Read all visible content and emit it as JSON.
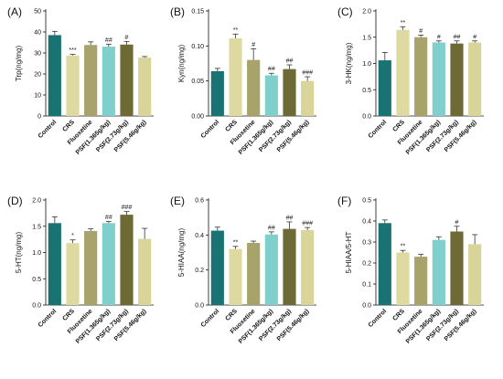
{
  "colors": [
    "#1a7373",
    "#ded9a0",
    "#a7a36a",
    "#7fcfcc",
    "#6e6a35",
    "#d9d59a"
  ],
  "chart_data": [
    {
      "type": "bar",
      "panel": "(A)",
      "ylabel": "Trp(ng/mg)",
      "categories": [
        "Control",
        "CRS",
        "Fluoxetine",
        "PSF(1.365g/kg)",
        "PSF(2.73g/kg)",
        "PSF(5.46g/kg)"
      ],
      "values": [
        38.5,
        28.8,
        33.8,
        33.0,
        34.0,
        27.8
      ],
      "errors": [
        1.8,
        0.5,
        1.5,
        1.2,
        1.5,
        0.5
      ],
      "significance": [
        "",
        "***",
        "",
        "##",
        "#",
        ""
      ],
      "ylim": [
        0,
        50
      ],
      "yticks": [
        "0",
        "10",
        "20",
        "30",
        "40",
        "50"
      ]
    },
    {
      "type": "bar",
      "panel": "(B)",
      "ylabel": "Kyn(ng/mg)",
      "categories": [
        "Control",
        "CRS",
        "Fluoxetine",
        "PSF(1.365g/kg)",
        "PSF(2.73g/kg)",
        "PSF(5.46g/kg)"
      ],
      "values": [
        0.064,
        0.111,
        0.08,
        0.058,
        0.067,
        0.05
      ],
      "errors": [
        0.004,
        0.006,
        0.016,
        0.003,
        0.006,
        0.006
      ],
      "significance": [
        "",
        "**",
        "#",
        "##",
        "##",
        "###"
      ],
      "ylim": [
        0,
        0.15
      ],
      "yticks": [
        "0.00",
        "0.05",
        "0.10",
        "0.15"
      ]
    },
    {
      "type": "bar",
      "panel": "(C)",
      "ylabel": "3-HK(ng/mg)",
      "categories": [
        "Control",
        "CRS",
        "Fluoxetine",
        "PSF(1.365g/kg)",
        "PSF(2.73g/kg)",
        "PSF(5.46g/kg)"
      ],
      "values": [
        1.06,
        1.64,
        1.5,
        1.4,
        1.38,
        1.4
      ],
      "errors": [
        0.15,
        0.06,
        0.04,
        0.03,
        0.05,
        0.03
      ],
      "significance": [
        "",
        "**",
        "#",
        "#",
        "##",
        "#"
      ],
      "ylim": [
        0,
        2.0
      ],
      "yticks": [
        "0.0",
        "0.5",
        "1.0",
        "1.5",
        "2.0"
      ]
    },
    {
      "type": "bar",
      "panel": "(D)",
      "ylabel": "5-HT(ng/mg)",
      "categories": [
        "Control",
        "CRS",
        "Fluoxetine",
        "PSF(1.365g/kg)",
        "PSF(2.73g/kg)",
        "PSF(5.46g/kg)"
      ],
      "values": [
        1.56,
        1.18,
        1.41,
        1.56,
        1.72,
        1.26
      ],
      "errors": [
        0.12,
        0.06,
        0.04,
        0.03,
        0.06,
        0.2
      ],
      "significance": [
        "",
        "*",
        "",
        "##",
        "###",
        ""
      ],
      "ylim": [
        0,
        2.0
      ],
      "yticks": [
        "0.0",
        "0.5",
        "1.0",
        "1.5",
        "2.0"
      ]
    },
    {
      "type": "bar",
      "panel": "(E)",
      "ylabel": "5-HIAA(ng/mg)",
      "categories": [
        "Control",
        "CRS",
        "Fluoxetine",
        "PSF(1.365g/kg)",
        "PSF(2.73g/kg)",
        "PSF(5.46g/kg)"
      ],
      "values": [
        0.425,
        0.32,
        0.355,
        0.403,
        0.435,
        0.428
      ],
      "errors": [
        0.02,
        0.015,
        0.01,
        0.015,
        0.04,
        0.015
      ],
      "significance": [
        "",
        "**",
        "",
        "##",
        "##",
        "###"
      ],
      "ylim": [
        0,
        0.6
      ],
      "yticks": [
        "0.0",
        "0.2",
        "0.4",
        "0.6"
      ]
    },
    {
      "type": "bar",
      "panel": "(F)",
      "ylabel": "5-HIAA/5-HT",
      "categories": [
        "Control",
        "CRS",
        "Fluoxetine",
        "PSF(1.365g/kg)",
        "PSF(2.73g/kg)",
        "PSF(5.46g/kg)"
      ],
      "values": [
        0.39,
        0.25,
        0.23,
        0.31,
        0.35,
        0.29
      ],
      "errors": [
        0.015,
        0.01,
        0.012,
        0.015,
        0.025,
        0.045
      ],
      "significance": [
        "",
        "**",
        "",
        "",
        "#",
        ""
      ],
      "ylim": [
        0,
        0.5
      ],
      "yticks": [
        "0.0",
        "0.1",
        "0.2",
        "0.3",
        "0.4",
        "0.5"
      ]
    }
  ]
}
